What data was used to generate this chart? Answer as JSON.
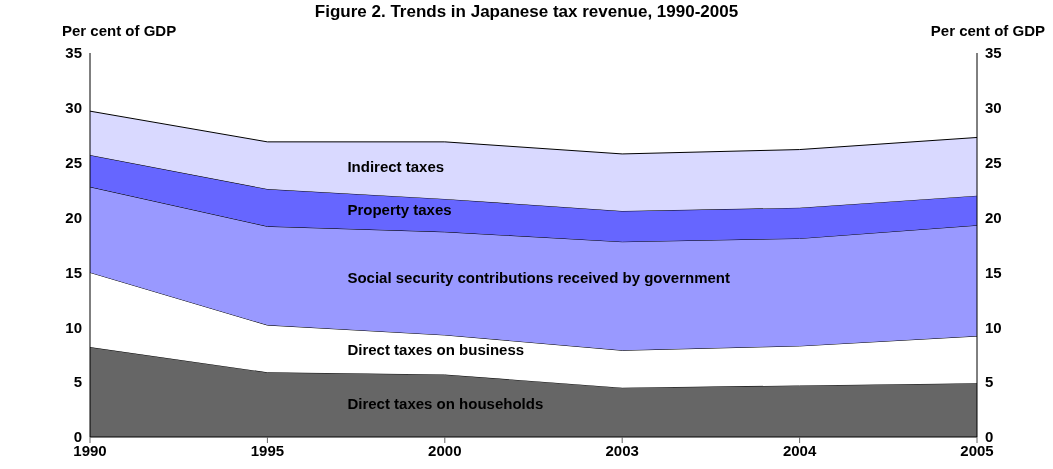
{
  "chart_data": {
    "type": "area",
    "title": "Figure 2. Trends in Japanese tax revenue, 1990-2005",
    "ylabel": "Per cent of GDP",
    "y2label": "Per cent of GDP",
    "categories": [
      "1990",
      "1995",
      "2000",
      "2003",
      "2004",
      "2005"
    ],
    "stacked": true,
    "legend": false,
    "ylim": [
      0,
      35
    ],
    "yticks": [
      0,
      5,
      10,
      15,
      20,
      25,
      30,
      35
    ],
    "y2lim": [
      0,
      35
    ],
    "y2ticks": [
      0,
      5,
      10,
      15,
      20,
      25,
      30,
      35
    ],
    "series": [
      {
        "name": "Direct taxes on households",
        "color": "#666666",
        "values": [
          8.2,
          5.9,
          5.7,
          4.5,
          4.7,
          4.9
        ]
      },
      {
        "name": "Direct taxes on business",
        "color": "#ffffff",
        "values": [
          6.8,
          4.3,
          3.6,
          3.4,
          3.6,
          4.3
        ]
      },
      {
        "name": "Social security contributions received by government",
        "color": "#9999ff",
        "values": [
          7.8,
          9.0,
          9.4,
          9.9,
          9.8,
          10.1
        ]
      },
      {
        "name": "Property taxes",
        "color": "#6666ff",
        "values": [
          2.9,
          3.4,
          3.0,
          2.8,
          2.8,
          2.7
        ]
      },
      {
        "name": "Indirect taxes",
        "color": "#d9d9ff",
        "values": [
          4.0,
          4.3,
          5.2,
          5.2,
          5.3,
          5.3
        ]
      }
    ]
  }
}
